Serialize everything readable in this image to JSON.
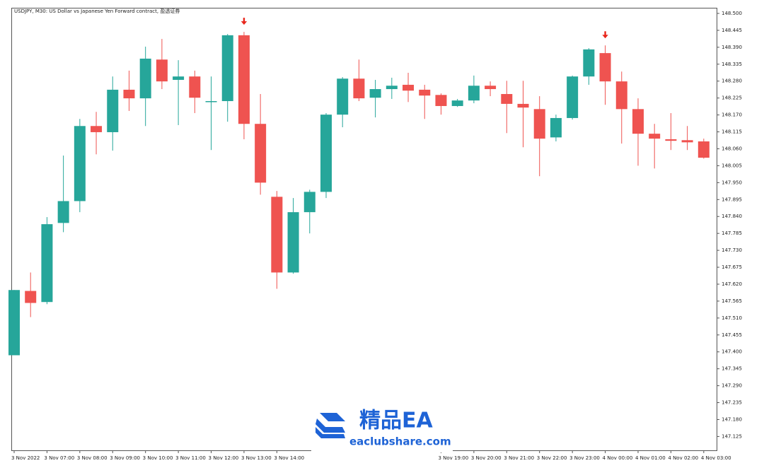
{
  "chart_data": {
    "type": "candlestick",
    "title": "USDJPY, M30: US Dollar vs Japanese Yen Forward contract, 盈透证券",
    "categories": [
      "3 Nov 2022",
      null,
      "3 Nov 07:00",
      null,
      "3 Nov 08:00",
      null,
      "3 Nov 09:00",
      null,
      "3 Nov 10:00",
      null,
      "3 Nov 11:00",
      null,
      "3 Nov 12:00",
      null,
      "3 Nov 13:00",
      null,
      "3 Nov 14:00",
      null,
      null,
      null,
      null,
      null,
      null,
      null,
      null,
      null,
      "3 Nov 19:00",
      null,
      "3 Nov 20:00",
      null,
      "3 Nov 21:00",
      null,
      "3 Nov 22:00",
      null,
      "3 Nov 23:00",
      null,
      "4 Nov 00:00",
      null,
      "4 Nov 01:00",
      null,
      "4 Nov 02:00",
      null,
      "4 Nov 03:00"
    ],
    "open": [
      147.389,
      147.598,
      147.562,
      147.819,
      147.89,
      148.134,
      148.114,
      148.252,
      148.224,
      148.35,
      148.284,
      148.295,
      148.212,
      148.215,
      148.429,
      148.141,
      147.904,
      147.658,
      147.854,
      147.92,
      148.171,
      148.288,
      148.226,
      148.254,
      148.268,
      148.252,
      148.235,
      148.199,
      148.217,
      148.265,
      148.238,
      148.206,
      148.189,
      148.097,
      148.16,
      148.295,
      148.371,
      148.279,
      148.189,
      148.109,
      148.091,
      148.088,
      148.084
    ],
    "high": [
      147.601,
      147.658,
      147.838,
      148.038,
      148.157,
      148.18,
      148.295,
      148.314,
      148.392,
      148.417,
      148.348,
      148.314,
      148.295,
      148.433,
      148.44,
      148.238,
      147.923,
      147.9,
      147.927,
      148.176,
      148.293,
      148.35,
      148.284,
      148.291,
      148.307,
      148.268,
      148.24,
      148.222,
      148.298,
      148.279,
      148.281,
      148.281,
      148.231,
      148.171,
      148.298,
      148.387,
      148.396,
      148.311,
      148.224,
      148.141,
      148.176,
      148.134,
      148.093
    ],
    "low": [
      147.389,
      147.513,
      147.555,
      147.789,
      147.854,
      148.042,
      148.054,
      148.183,
      148.134,
      148.254,
      148.137,
      148.176,
      148.056,
      148.148,
      148.091,
      147.911,
      147.605,
      147.654,
      147.785,
      147.9,
      148.13,
      148.215,
      148.162,
      148.222,
      148.212,
      148.157,
      148.171,
      148.196,
      148.208,
      148.231,
      148.111,
      148.065,
      147.971,
      148.084,
      148.155,
      148.268,
      148.203,
      148.077,
      148.005,
      147.996,
      148.056,
      148.056,
      148.028
    ],
    "close": [
      147.601,
      147.559,
      147.815,
      147.89,
      148.134,
      148.114,
      148.252,
      148.224,
      148.353,
      148.279,
      148.295,
      148.226,
      148.215,
      148.429,
      148.141,
      147.95,
      147.658,
      147.854,
      147.92,
      148.171,
      148.288,
      148.224,
      148.254,
      148.265,
      148.249,
      148.233,
      148.199,
      148.217,
      148.265,
      148.254,
      148.206,
      148.194,
      148.093,
      148.16,
      148.295,
      148.383,
      148.279,
      148.189,
      148.109,
      148.093,
      148.086,
      148.081,
      148.031
    ],
    "up_color": "#26a69a",
    "down_color": "#ef5350",
    "sell_signals": [
      14,
      36
    ],
    "ylim": [
      147.08,
      148.516
    ],
    "yticks": [
      {
        "value": 148.5,
        "label": "148.500"
      },
      {
        "value": 148.445,
        "label": "148.445"
      },
      {
        "value": 148.39,
        "label": "148.390"
      },
      {
        "value": 148.335,
        "label": "148.335"
      },
      {
        "value": 148.28,
        "label": "148.280"
      },
      {
        "value": 148.225,
        "label": "148.225"
      },
      {
        "value": 148.17,
        "label": "148.170"
      },
      {
        "value": 148.115,
        "label": "148.115"
      },
      {
        "value": 148.06,
        "label": "148.060"
      },
      {
        "value": 148.005,
        "label": "148.005"
      },
      {
        "value": 147.95,
        "label": "147.950"
      },
      {
        "value": 147.895,
        "label": "147.895"
      },
      {
        "value": 147.84,
        "label": "147.840"
      },
      {
        "value": 147.785,
        "label": "147.785"
      },
      {
        "value": 147.73,
        "label": "147.730"
      },
      {
        "value": 147.675,
        "label": "147.675"
      },
      {
        "value": 147.62,
        "label": "147.620"
      },
      {
        "value": 147.565,
        "label": "147.565"
      },
      {
        "value": 147.51,
        "label": "147.510"
      },
      {
        "value": 147.455,
        "label": "147.455"
      },
      {
        "value": 147.4,
        "label": "147.400"
      },
      {
        "value": 147.345,
        "label": "147.345"
      },
      {
        "value": 147.29,
        "label": "147.290"
      },
      {
        "value": 147.235,
        "label": "147.235"
      },
      {
        "value": 147.18,
        "label": "147.180"
      },
      {
        "value": 147.125,
        "label": "147.125"
      }
    ],
    "grid": false
  },
  "watermark": {
    "title": "精品EA",
    "url": "eaclubshare.com"
  }
}
